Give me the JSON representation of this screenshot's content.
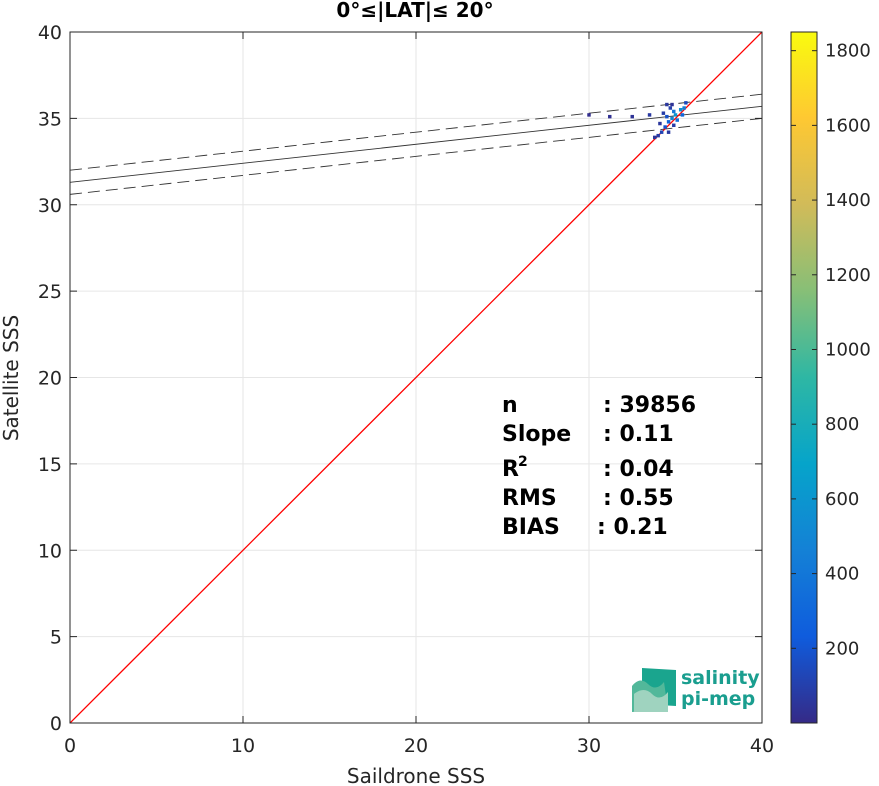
{
  "chart_data": {
    "type": "heatmap",
    "title": "0°≤|LAT|≤ 20°",
    "xlabel": "Saildrone SSS",
    "ylabel": "Satellite SSS",
    "xlim": [
      0,
      40
    ],
    "ylim": [
      0,
      40
    ],
    "xticks": [
      "0",
      "10",
      "20",
      "30",
      "40"
    ],
    "yticks": [
      "0",
      "5",
      "10",
      "15",
      "20",
      "25",
      "30",
      "35",
      "40"
    ],
    "grid": true,
    "colorbar": {
      "range": [
        0,
        1850
      ],
      "ticks": [
        "200",
        "400",
        "600",
        "800",
        "1000",
        "1200",
        "1400",
        "1600",
        "1800"
      ],
      "colormap": "parula"
    },
    "identity_line": {
      "color": "#ff0000",
      "from": [
        0,
        0
      ],
      "to": [
        40,
        40
      ]
    },
    "fit_line": {
      "slope": 0.11,
      "intercept": 31.3,
      "band": 0.7
    },
    "density": [
      {
        "x": 35.0,
        "y": 35.2,
        "count": 600
      },
      {
        "x": 35.3,
        "y": 35.5,
        "count": 550
      },
      {
        "x": 34.8,
        "y": 35.0,
        "count": 500
      },
      {
        "x": 35.5,
        "y": 35.6,
        "count": 450
      },
      {
        "x": 34.9,
        "y": 35.4,
        "count": 400
      },
      {
        "x": 34.6,
        "y": 34.8,
        "count": 300
      },
      {
        "x": 35.1,
        "y": 34.9,
        "count": 350
      },
      {
        "x": 34.4,
        "y": 34.5,
        "count": 200
      },
      {
        "x": 34.2,
        "y": 34.2,
        "count": 120
      },
      {
        "x": 34.0,
        "y": 34.0,
        "count": 80
      },
      {
        "x": 33.8,
        "y": 33.9,
        "count": 50
      },
      {
        "x": 34.7,
        "y": 35.6,
        "count": 100
      },
      {
        "x": 34.5,
        "y": 35.8,
        "count": 60
      },
      {
        "x": 34.3,
        "y": 35.3,
        "count": 90
      },
      {
        "x": 33.5,
        "y": 35.2,
        "count": 70
      },
      {
        "x": 32.5,
        "y": 35.1,
        "count": 40
      },
      {
        "x": 31.2,
        "y": 35.1,
        "count": 30
      },
      {
        "x": 30.0,
        "y": 35.2,
        "count": 20
      },
      {
        "x": 35.6,
        "y": 35.9,
        "count": 150
      },
      {
        "x": 34.6,
        "y": 34.2,
        "count": 70
      },
      {
        "x": 34.9,
        "y": 34.6,
        "count": 90
      },
      {
        "x": 35.4,
        "y": 35.2,
        "count": 300
      },
      {
        "x": 34.5,
        "y": 35.1,
        "count": 180
      },
      {
        "x": 34.1,
        "y": 34.7,
        "count": 60
      },
      {
        "x": 34.8,
        "y": 35.8,
        "count": 40
      }
    ]
  },
  "stats": {
    "n_label": "n",
    "n_value": ": 39856",
    "slope_label": "Slope",
    "slope_value": ": 0.11",
    "r2_label": "R",
    "r2_sup": "2",
    "r2_value": ": 0.04",
    "rms_label": "RMS",
    "rms_value": ": 0.55",
    "bias_label": "BIAS",
    "bias_value": ": 0.21"
  },
  "logo": {
    "line1": "salinity",
    "line2": "pi-mep"
  }
}
